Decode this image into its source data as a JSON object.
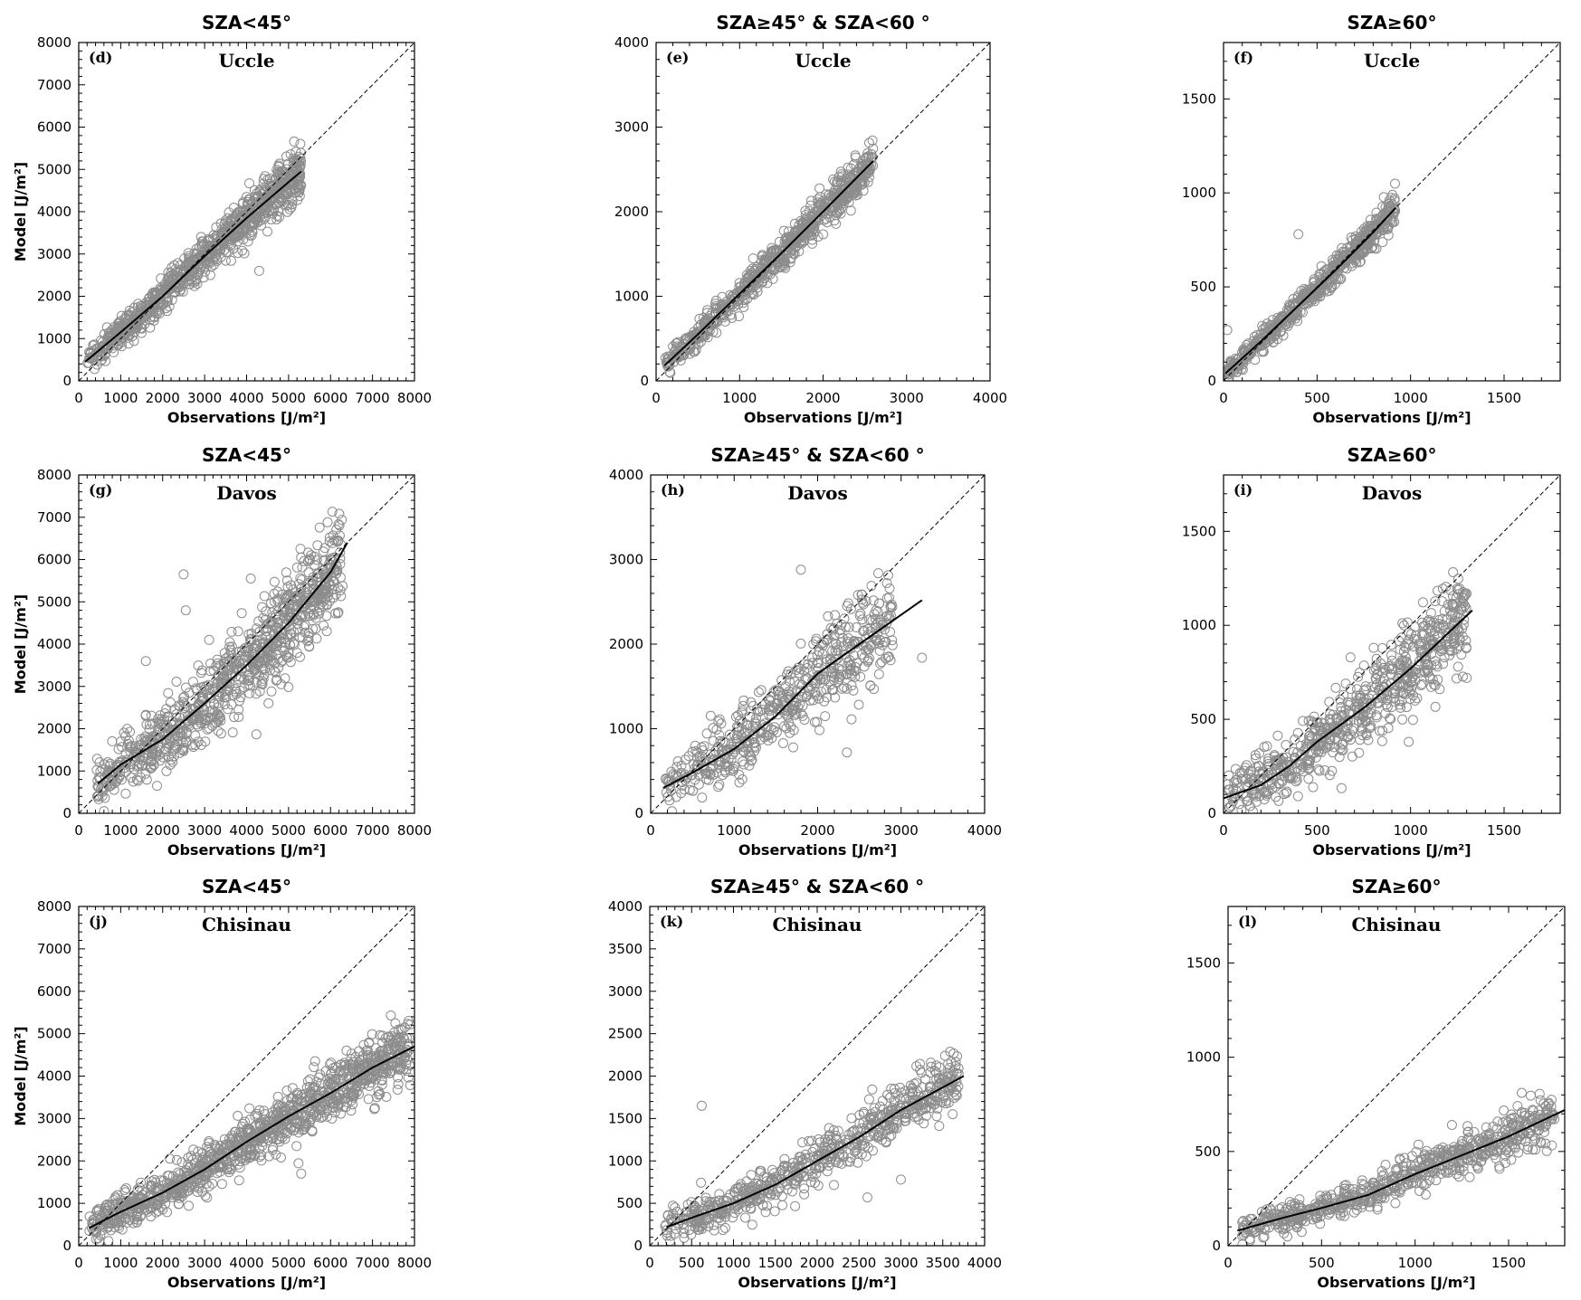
{
  "figure": {
    "xlabel": "Observations [J/m²]",
    "ylabel": "Model [J/m²]",
    "columns": [
      "SZA<45°",
      "SZA≥45° & SZA<60 °",
      "SZA≥60°"
    ]
  },
  "chart_data": [
    {
      "type": "scatter",
      "panel": "(d)",
      "station": "Uccle",
      "title": "SZA<45°",
      "xlabel": "Observations [J/m²]",
      "ylabel": "Model [J/m²]",
      "xlim": [
        0,
        8000
      ],
      "ylim": [
        0,
        8000
      ],
      "xticks": [
        0,
        1000,
        2000,
        3000,
        4000,
        5000,
        6000,
        7000,
        8000
      ],
      "yticks": [
        0,
        1000,
        2000,
        3000,
        4000,
        5000,
        6000,
        7000,
        8000
      ],
      "scatter": {
        "xmin": 200,
        "xmax": 5300,
        "slope": 0.88,
        "intercept": 320,
        "spread": 260,
        "n": 900,
        "outliers": [
          [
            4300,
            2600
          ]
        ]
      },
      "fit_line": {
        "x": [
          150,
          1000,
          2000,
          3000,
          4000,
          5000,
          5300
        ],
        "y": [
          450,
          1150,
          2000,
          2950,
          3850,
          4700,
          4950
        ]
      },
      "one_to_one": true
    },
    {
      "type": "scatter",
      "panel": "(e)",
      "station": "Uccle",
      "title": "SZA≥45° & SZA<60 °",
      "xlabel": "Observations [J/m²]",
      "ylabel": "",
      "xlim": [
        0,
        4000
      ],
      "ylim": [
        0,
        4000
      ],
      "xticks": [
        0,
        1000,
        2000,
        3000,
        4000
      ],
      "yticks": [
        0,
        1000,
        2000,
        3000,
        4000
      ],
      "scatter": {
        "xmin": 100,
        "xmax": 2600,
        "slope": 0.98,
        "intercept": 40,
        "spread": 110,
        "n": 700,
        "outliers": []
      },
      "fit_line": {
        "x": [
          100,
          500,
          1000,
          1500,
          2000,
          2600
        ],
        "y": [
          180,
          550,
          1030,
          1510,
          2000,
          2600
        ]
      },
      "one_to_one": true
    },
    {
      "type": "scatter",
      "panel": "(f)",
      "station": "Uccle",
      "title": "SZA≥60°",
      "xlabel": "Observations [J/m²]",
      "ylabel": "",
      "xlim": [
        0,
        1800
      ],
      "ylim": [
        0,
        1800
      ],
      "xticks": [
        0,
        500,
        1000,
        1500
      ],
      "yticks": [
        0,
        500,
        1000,
        1500
      ],
      "scatter": {
        "xmin": 10,
        "xmax": 920,
        "slope": 0.97,
        "intercept": 25,
        "spread": 40,
        "n": 600,
        "outliers": [
          [
            400,
            780
          ],
          [
            20,
            270
          ]
        ]
      },
      "fit_line": {
        "x": [
          10,
          200,
          400,
          600,
          800,
          920
        ],
        "y": [
          40,
          210,
          400,
          590,
          790,
          920
        ]
      },
      "one_to_one": true
    },
    {
      "type": "scatter",
      "panel": "(g)",
      "station": "Davos",
      "title": "SZA<45°",
      "xlabel": "Observations [J/m²]",
      "ylabel": "Model [J/m²]",
      "xlim": [
        0,
        8000
      ],
      "ylim": [
        0,
        8000
      ],
      "xticks": [
        0,
        1000,
        2000,
        3000,
        4000,
        5000,
        6000,
        7000,
        8000
      ],
      "yticks": [
        0,
        1000,
        2000,
        3000,
        4000,
        5000,
        6000,
        7000,
        8000
      ],
      "scatter": {
        "xmin": 400,
        "xmax": 6300,
        "slope": 0.9,
        "intercept": 150,
        "spread": 520,
        "n": 900,
        "outliers": [
          [
            2500,
            5650
          ],
          [
            2550,
            4800
          ],
          [
            1600,
            3600
          ],
          [
            4100,
            5550
          ]
        ]
      },
      "fit_line": {
        "x": [
          450,
          1000,
          2000,
          3000,
          4000,
          5000,
          6000,
          6400
        ],
        "y": [
          700,
          1150,
          1750,
          2600,
          3500,
          4500,
          5700,
          6400
        ]
      },
      "one_to_one": true
    },
    {
      "type": "scatter",
      "panel": "(h)",
      "station": "Davos",
      "title": "SZA≥45° & SZA<60 °",
      "xlabel": "Observations [J/m²]",
      "ylabel": "",
      "xlim": [
        0,
        4000
      ],
      "ylim": [
        0,
        4000
      ],
      "xticks": [
        0,
        1000,
        2000,
        3000,
        4000
      ],
      "yticks": [
        0,
        1000,
        2000,
        3000,
        4000
      ],
      "scatter": {
        "xmin": 150,
        "xmax": 2900,
        "slope": 0.8,
        "intercept": 150,
        "spread": 260,
        "n": 550,
        "outliers": [
          [
            1800,
            2880
          ],
          [
            3250,
            1840
          ],
          [
            2350,
            720
          ]
        ]
      },
      "fit_line": {
        "x": [
          150,
          500,
          1000,
          1500,
          2000,
          2500,
          3250
        ],
        "y": [
          300,
          480,
          760,
          1150,
          1650,
          2000,
          2520
        ]
      },
      "one_to_one": true
    },
    {
      "type": "scatter",
      "panel": "(i)",
      "station": "Davos",
      "title": "SZA≥60°",
      "xlabel": "Observations [J/m²]",
      "ylabel": "",
      "xlim": [
        0,
        1800
      ],
      "ylim": [
        0,
        1800
      ],
      "xticks": [
        0,
        500,
        1000,
        1500
      ],
      "yticks": [
        0,
        500,
        1000,
        1500
      ],
      "scatter": {
        "xmin": 20,
        "xmax": 1300,
        "slope": 0.85,
        "intercept": 40,
        "spread": 110,
        "n": 700,
        "outliers": [
          [
            1300,
            720
          ],
          [
            990,
            380
          ]
        ]
      },
      "fit_line": {
        "x": [
          0,
          200,
          350,
          500,
          750,
          1000,
          1330
        ],
        "y": [
          80,
          150,
          250,
          380,
          560,
          770,
          1080
        ]
      },
      "one_to_one": true
    },
    {
      "type": "scatter",
      "panel": "(j)",
      "station": "Chisinau",
      "title": "SZA<45°",
      "xlabel": "Observations [J/m²]",
      "ylabel": "Model [J/m²]",
      "xlim": [
        0,
        8000
      ],
      "ylim": [
        0,
        8000
      ],
      "xticks": [
        0,
        1000,
        2000,
        3000,
        4000,
        5000,
        6000,
        7000,
        8000
      ],
      "yticks": [
        0,
        1000,
        2000,
        3000,
        4000,
        5000,
        6000,
        7000,
        8000
      ],
      "scatter": {
        "xmin": 250,
        "xmax": 7900,
        "slope": 0.56,
        "intercept": 300,
        "spread": 330,
        "n": 1100,
        "outliers": [
          [
            5300,
            1700
          ]
        ]
      },
      "fit_line": {
        "x": [
          250,
          1000,
          2000,
          3000,
          4000,
          5000,
          6000,
          7000,
          8000
        ],
        "y": [
          420,
          800,
          1250,
          1800,
          2450,
          3050,
          3600,
          4200,
          4700
        ]
      },
      "one_to_one": true
    },
    {
      "type": "scatter",
      "panel": "(k)",
      "station": "Chisinau",
      "title": "SZA≥45° & SZA<60 °",
      "xlabel": "Observations [J/m²]",
      "ylabel": "",
      "xlim": [
        0,
        4000
      ],
      "ylim": [
        0,
        4000
      ],
      "xticks": [
        0,
        500,
        1000,
        1500,
        2000,
        2500,
        3000,
        3500,
        4000
      ],
      "yticks": [
        0,
        500,
        1000,
        1500,
        2000,
        2500,
        3000,
        3500,
        4000
      ],
      "scatter": {
        "xmin": 180,
        "xmax": 3700,
        "slope": 0.5,
        "intercept": 90,
        "spread": 150,
        "n": 650,
        "outliers": [
          [
            620,
            1650
          ],
          [
            2600,
            570
          ],
          [
            3000,
            780
          ]
        ]
      },
      "fit_line": {
        "x": [
          200,
          500,
          1000,
          1500,
          2000,
          2500,
          3000,
          3750
        ],
        "y": [
          220,
          330,
          500,
          720,
          1000,
          1280,
          1600,
          2000
        ]
      },
      "one_to_one": true
    },
    {
      "type": "scatter",
      "panel": "(l)",
      "station": "Chisinau",
      "title": "SZA≥60°",
      "xlabel": "Observations [J/m²]",
      "ylabel": "",
      "xlim": [
        0,
        1800
      ],
      "ylim": [
        0,
        1800
      ],
      "xticks": [
        0,
        500,
        1000,
        1500
      ],
      "yticks": [
        0,
        500,
        1000,
        1500
      ],
      "scatter": {
        "xmin": 60,
        "xmax": 1750,
        "slope": 0.38,
        "intercept": 50,
        "spread": 55,
        "n": 700,
        "outliers": []
      },
      "fit_line": {
        "x": [
          50,
          300,
          500,
          750,
          1000,
          1250,
          1500,
          1800
        ],
        "y": [
          80,
          150,
          200,
          270,
          380,
          480,
          580,
          720
        ]
      },
      "one_to_one": true
    }
  ]
}
